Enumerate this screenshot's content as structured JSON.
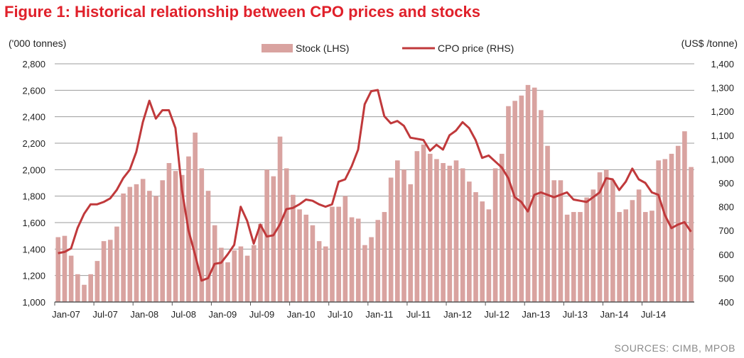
{
  "title": "Figure 1: Historical relationship between CPO prices and stocks",
  "source": "SOURCES: CIMB, MPOB",
  "chart_data": {
    "type": "bar+line",
    "left_unit": "('000 tonnes)",
    "right_unit": "(US$ /tonne)",
    "ylim_left": [
      1000,
      2800
    ],
    "ylim_right": [
      400,
      1400
    ],
    "left_ticks": [
      "1,000",
      "1,200",
      "1,400",
      "1,600",
      "1,800",
      "2,000",
      "2,200",
      "2,400",
      "2,600",
      "2,800"
    ],
    "right_ticks": [
      "400",
      "500",
      "600",
      "700",
      "800",
      "900",
      "1,000",
      "1,100",
      "1,200",
      "1,300",
      "1,400"
    ],
    "x_tick_labels": [
      "Jan-07",
      "Jul-07",
      "Jan-08",
      "Jul-08",
      "Jan-09",
      "Jul-09",
      "Jan-10",
      "Jul-10",
      "Jan-11",
      "Jul-11",
      "Jan-12",
      "Jul-12",
      "Jan-13",
      "Jul-13",
      "Jan-14",
      "Jul-14"
    ],
    "colors": {
      "bar": "#d9a3a0",
      "line": "#c0393b",
      "grid": "#9b9b9b",
      "title": "#e0202a"
    },
    "series": [
      {
        "name": "Stock (LHS)",
        "type": "bar",
        "values": [
          1490,
          1500,
          1350,
          1210,
          1130,
          1210,
          1310,
          1460,
          1470,
          1570,
          1820,
          1870,
          1890,
          1930,
          1840,
          1800,
          1920,
          2050,
          1990,
          1960,
          2100,
          2280,
          2010,
          1840,
          1580,
          1410,
          1300,
          1390,
          1420,
          1350,
          1430,
          1590,
          2000,
          1950,
          2250,
          2010,
          1810,
          1700,
          1660,
          1580,
          1460,
          1420,
          1720,
          1720,
          1800,
          1640,
          1630,
          1430,
          1490,
          1620,
          1680,
          1940,
          2070,
          2000,
          1890,
          2140,
          2190,
          2120,
          2080,
          2050,
          2030,
          2070,
          2010,
          1910,
          1830,
          1760,
          1700,
          2010,
          2120,
          2480,
          2520,
          2560,
          2640,
          2620,
          2450,
          2180,
          1920,
          1920,
          1660,
          1680,
          1680,
          1790,
          1850,
          1980,
          2000,
          1920,
          1680,
          1700,
          1770,
          1850,
          1680,
          1690,
          2070,
          2080,
          2120,
          2180,
          2290,
          2020
        ]
      },
      {
        "name": "CPO price (RHS)",
        "type": "line",
        "values": [
          605,
          610,
          625,
          710,
          770,
          810,
          810,
          820,
          835,
          870,
          920,
          955,
          1030,
          1155,
          1245,
          1170,
          1205,
          1205,
          1130,
          870,
          700,
          600,
          490,
          500,
          560,
          565,
          600,
          640,
          800,
          740,
          645,
          725,
          675,
          680,
          725,
          790,
          795,
          810,
          830,
          825,
          810,
          800,
          810,
          905,
          915,
          970,
          1040,
          1230,
          1285,
          1290,
          1180,
          1150,
          1160,
          1140,
          1090,
          1085,
          1080,
          1035,
          1060,
          1040,
          1100,
          1120,
          1155,
          1130,
          1080,
          1005,
          1015,
          990,
          965,
          920,
          840,
          820,
          780,
          850,
          860,
          850,
          840,
          850,
          860,
          830,
          825,
          820,
          840,
          860,
          920,
          915,
          870,
          905,
          960,
          915,
          900,
          860,
          850,
          765,
          710,
          725,
          735,
          695
        ]
      }
    ]
  }
}
